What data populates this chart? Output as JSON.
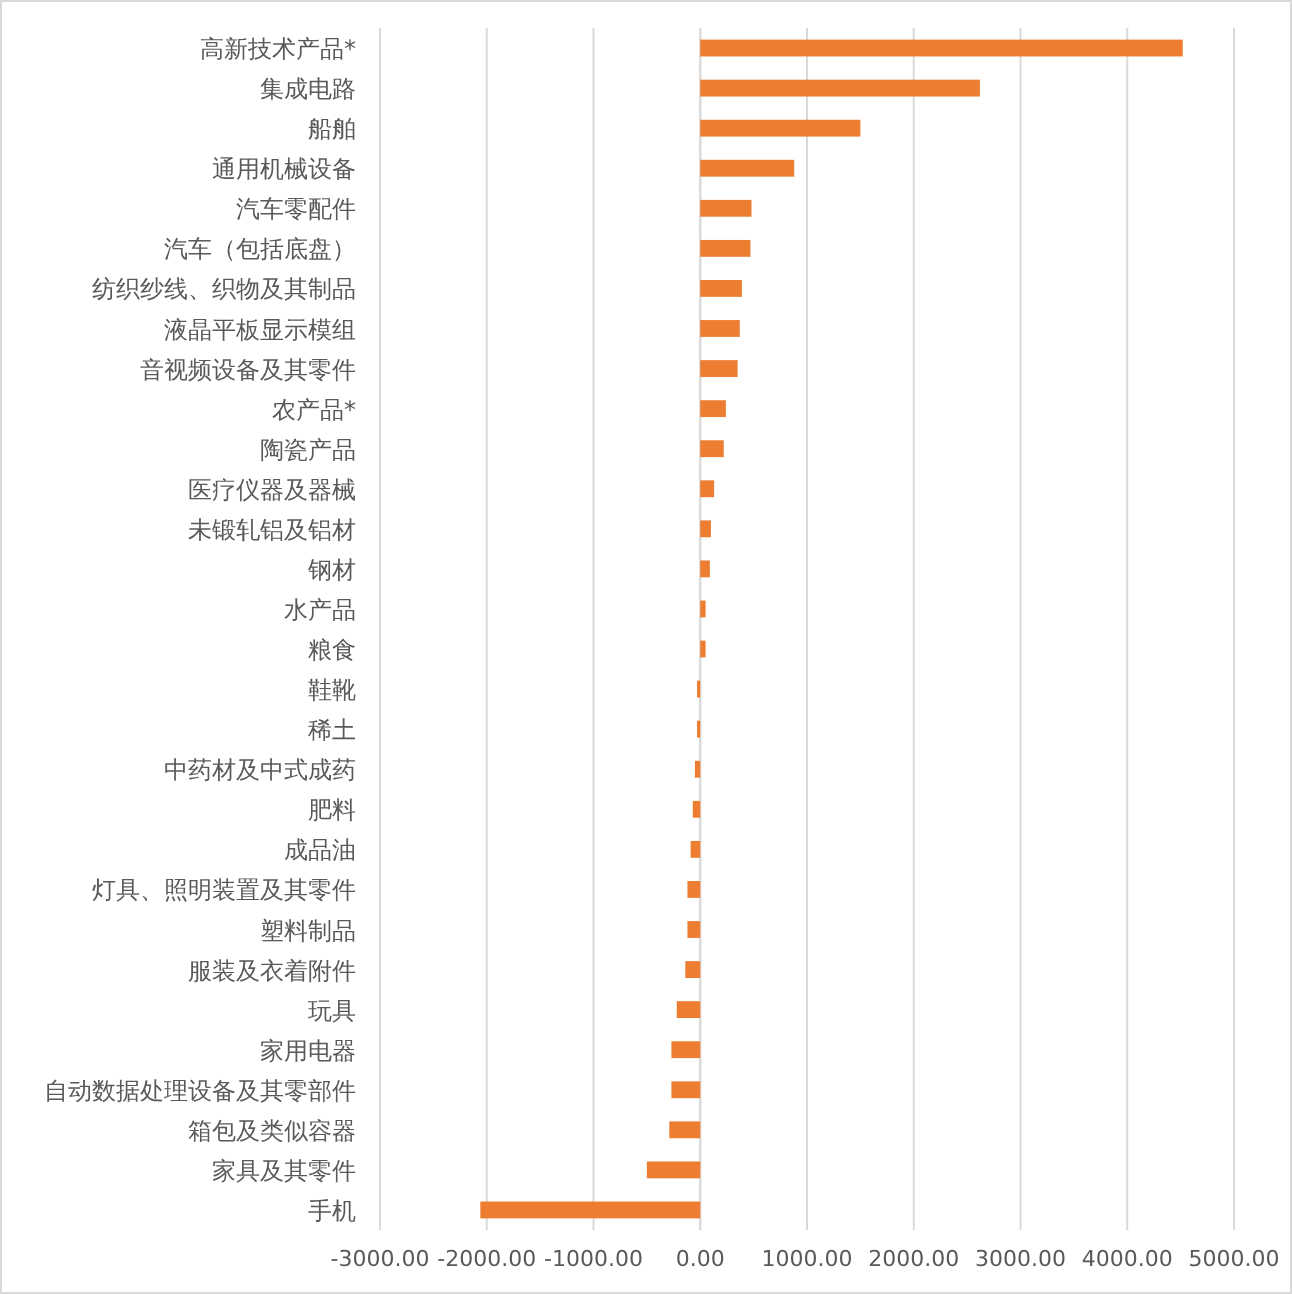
{
  "chart_data": {
    "type": "bar",
    "orientation": "horizontal",
    "categories": [
      "高新技术产品*",
      "集成电路",
      "船舶",
      "通用机械设备",
      "汽车零配件",
      "汽车（包括底盘）",
      "纺织纱线、织物及其制品",
      "液晶平板显示模组",
      "音视频设备及其零件",
      "农产品*",
      "陶瓷产品",
      "医疗仪器及器械",
      "未锻轧铝及铝材",
      "钢材",
      "水产品",
      "粮食",
      "鞋靴",
      "稀土",
      "中药材及中式成药",
      "肥料",
      "成品油",
      "灯具、照明装置及其零件",
      "塑料制品",
      "服装及衣着附件",
      "玩具",
      "家用电器",
      "自动数据处理设备及其零部件",
      "箱包及类似容器",
      "家具及其零件",
      "手机"
    ],
    "values": [
      4520,
      2620,
      1500,
      880,
      480,
      470,
      390,
      370,
      350,
      240,
      220,
      130,
      100,
      90,
      50,
      50,
      -30,
      -30,
      -50,
      -70,
      -90,
      -120,
      -120,
      -140,
      -220,
      -270,
      -270,
      -290,
      -500,
      -2060
    ],
    "color": "#ed7d31",
    "xlim": [
      -3000,
      5000
    ],
    "xticks": [
      {
        "value": -3000,
        "label": "-3000.00"
      },
      {
        "value": -2000,
        "label": "-2000.00"
      },
      {
        "value": -1000,
        "label": "-1000.00"
      },
      {
        "value": 0,
        "label": "0.00"
      },
      {
        "value": 1000,
        "label": "1000.00"
      },
      {
        "value": 2000,
        "label": "2000.00"
      },
      {
        "value": 3000,
        "label": "3000.00"
      },
      {
        "value": 4000,
        "label": "4000.00"
      },
      {
        "value": 5000,
        "label": "5000.00"
      }
    ],
    "grid": "x"
  }
}
